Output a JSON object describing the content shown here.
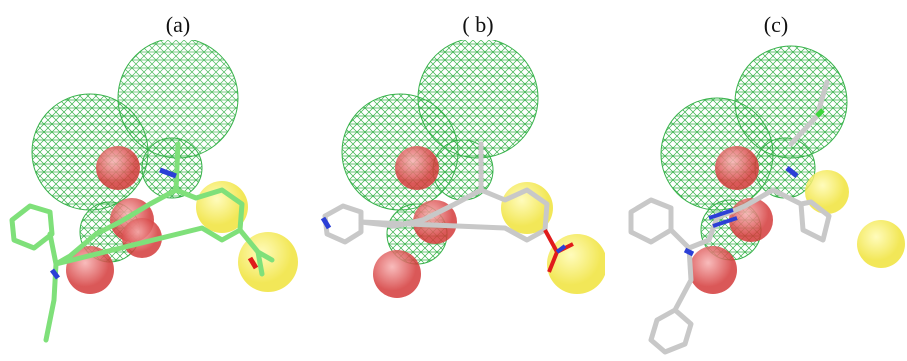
{
  "panels": [
    {
      "label": "(a)",
      "ligand_color": "#7fe07a"
    },
    {
      "label": "( b)",
      "ligand_color": "#c8c8c8"
    },
    {
      "label": "(c)",
      "ligand_color": "#c8c8c8"
    }
  ],
  "colors": {
    "hydrophobic_mesh": "#37b24a",
    "acceptor_sphere": "#e35d5d",
    "aromatic_sphere": "#f4ec5a",
    "nitrogen": "#2b3fd6",
    "oxygen": "#e01b1b"
  },
  "features": {
    "hydrophobic": "green-mesh-sphere",
    "hb_acceptor": "red-sphere",
    "aromatic_ring": "yellow-sphere"
  }
}
